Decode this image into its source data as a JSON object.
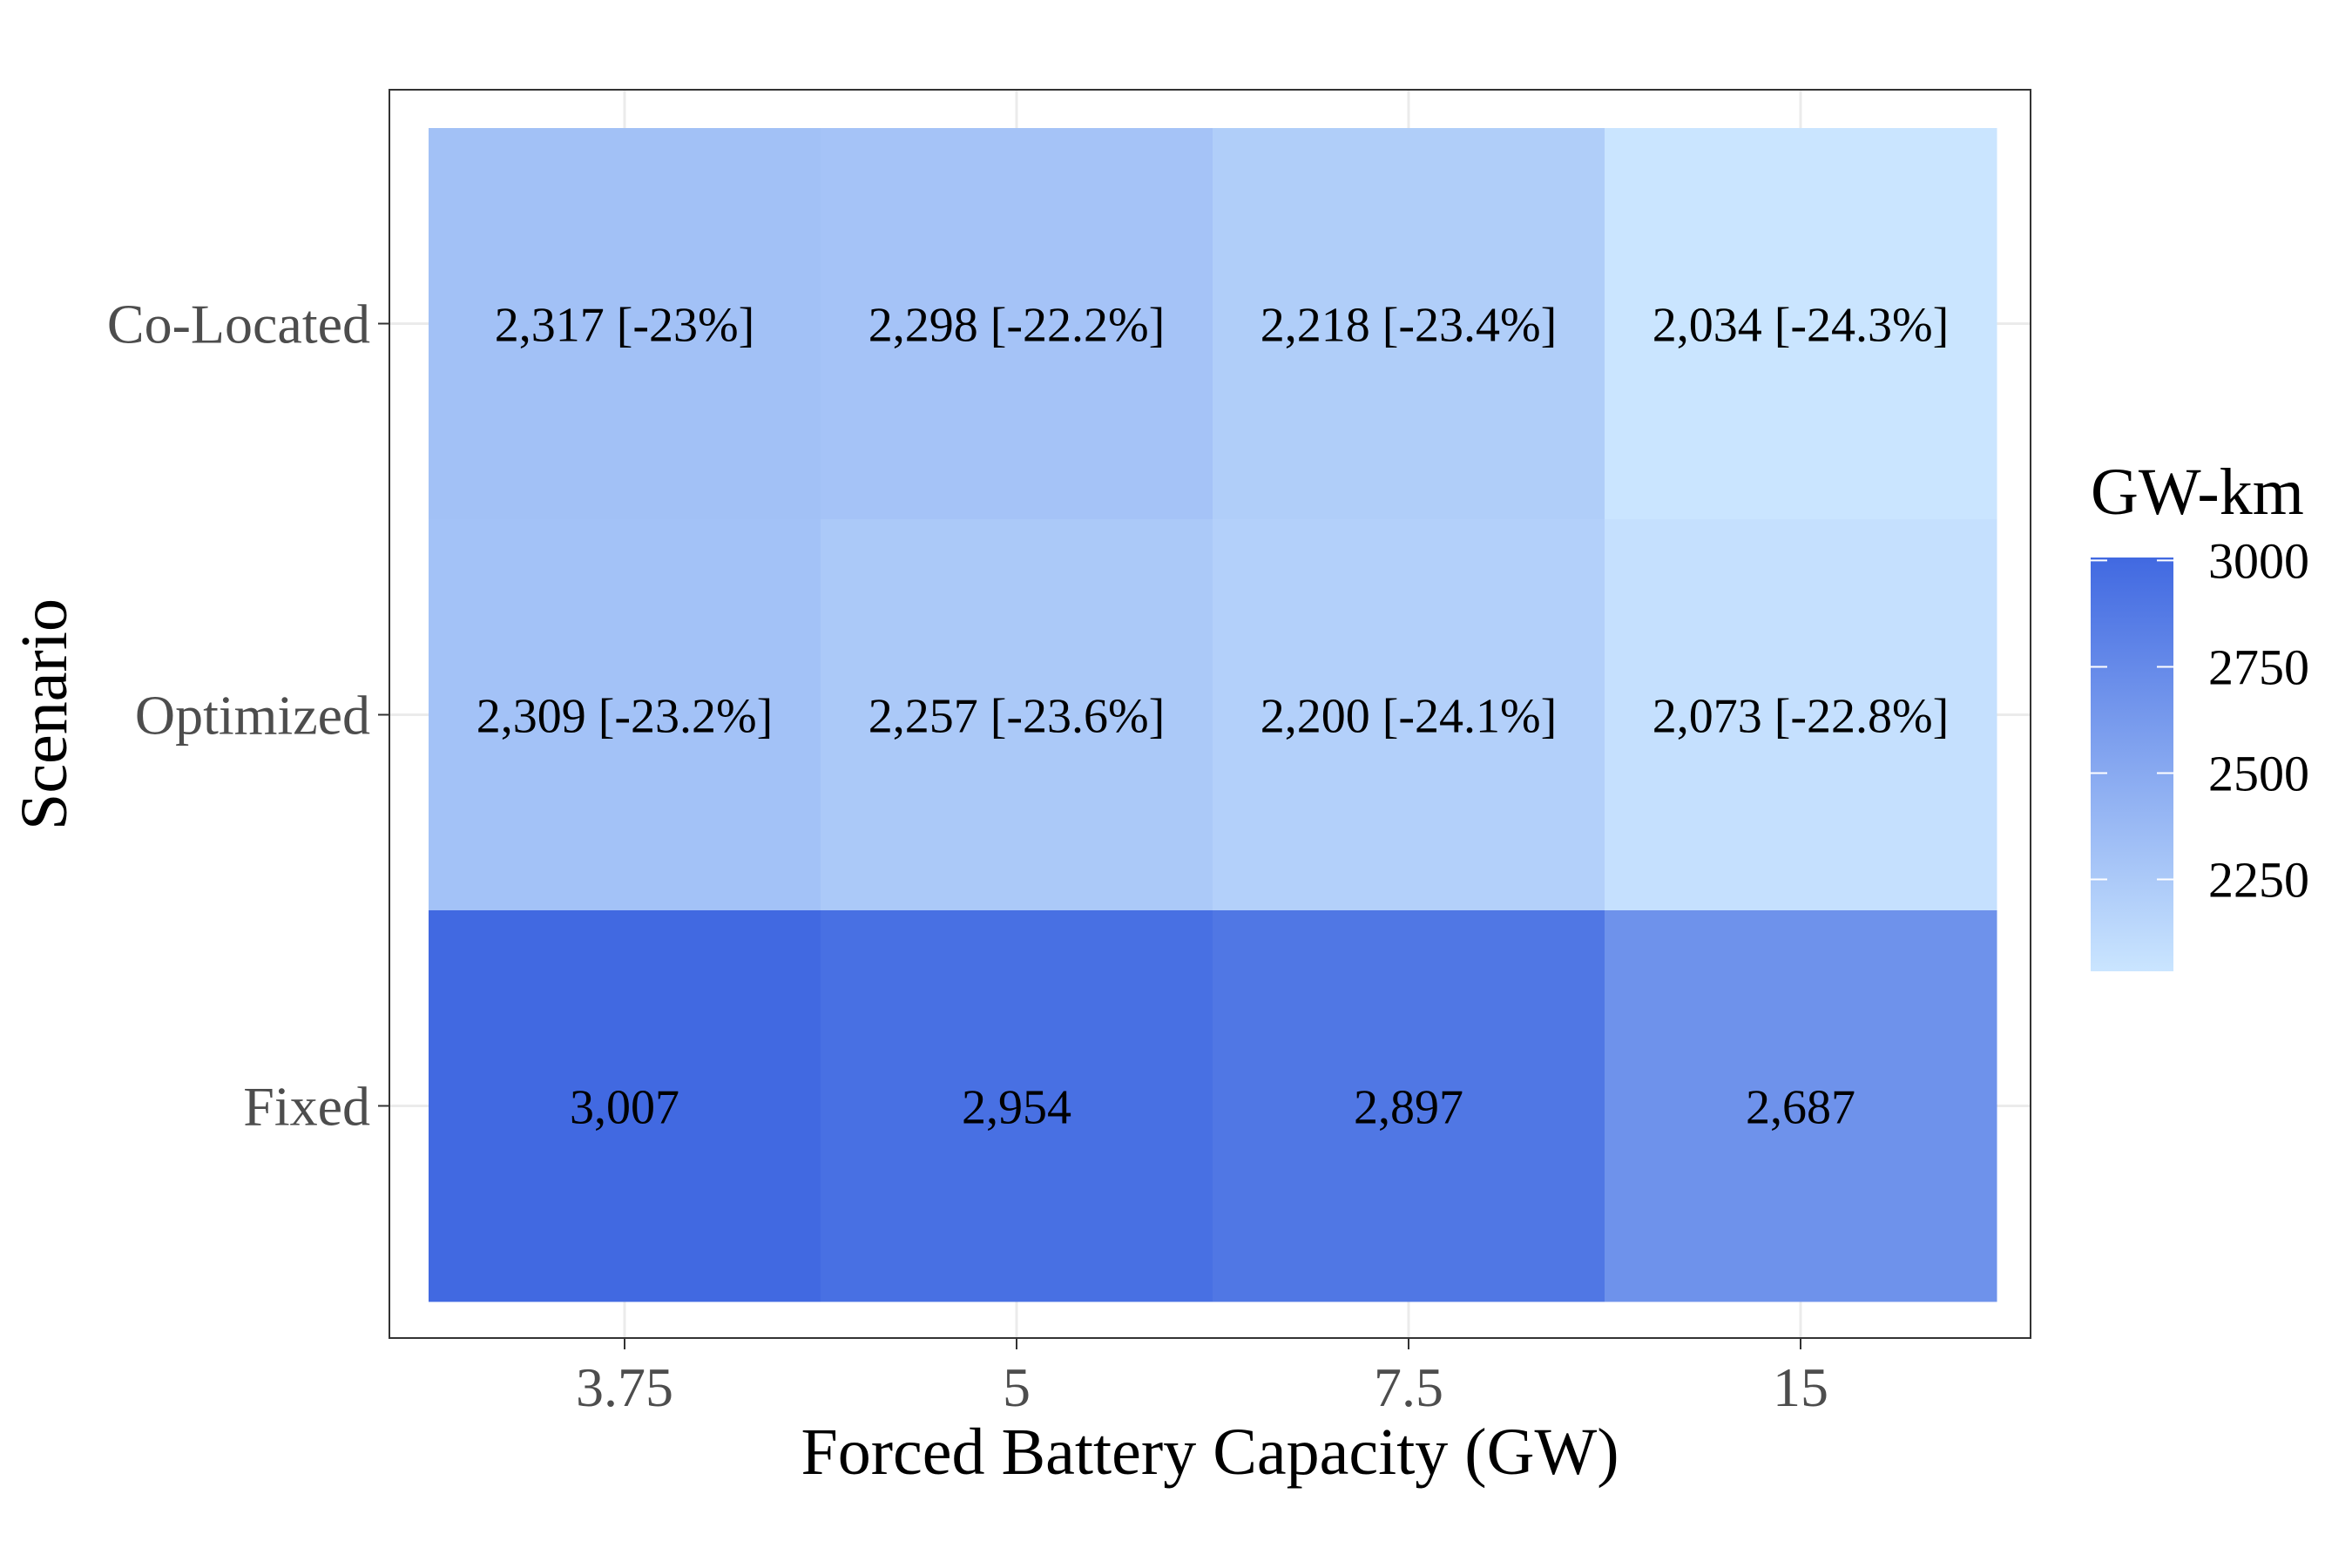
{
  "chart_data": {
    "type": "heatmap",
    "title": "",
    "xlabel": "Forced Battery Capacity (GW)",
    "ylabel": "Scenario",
    "x_categories": [
      "3.75",
      "5",
      "7.5",
      "15"
    ],
    "y_categories": [
      "Co-Located",
      "Optimized",
      "Fixed"
    ],
    "values": [
      [
        2317,
        2298,
        2218,
        2034
      ],
      [
        2309,
        2257,
        2200,
        2073
      ],
      [
        3007,
        2954,
        2897,
        2687
      ]
    ],
    "cell_labels": [
      [
        "2,317 [-23%]",
        "2,298 [-22.2%]",
        "2,218 [-23.4%]",
        "2,034 [-24.3%]"
      ],
      [
        "2,309 [-23.2%]",
        "2,257 [-23.6%]",
        "2,200 [-24.1%]",
        "2,073 [-22.8%]"
      ],
      [
        "3,007",
        "2,954",
        "2,897",
        "2,687"
      ]
    ],
    "color_scale": {
      "low": "#cae5ff",
      "high": "#4169e1",
      "min": 2034,
      "max": 3007
    },
    "legend": {
      "title": "GW-km",
      "ticks": [
        3000,
        2750,
        2500,
        2250
      ],
      "tick_labels": [
        "3000",
        "2750",
        "2500",
        "2250"
      ],
      "placement": "right"
    },
    "grid": true,
    "colors": {
      "panel_border": "#333333",
      "grid": "#ebebeb",
      "tick_text": "#4d4d4d",
      "text": "#000000"
    }
  }
}
